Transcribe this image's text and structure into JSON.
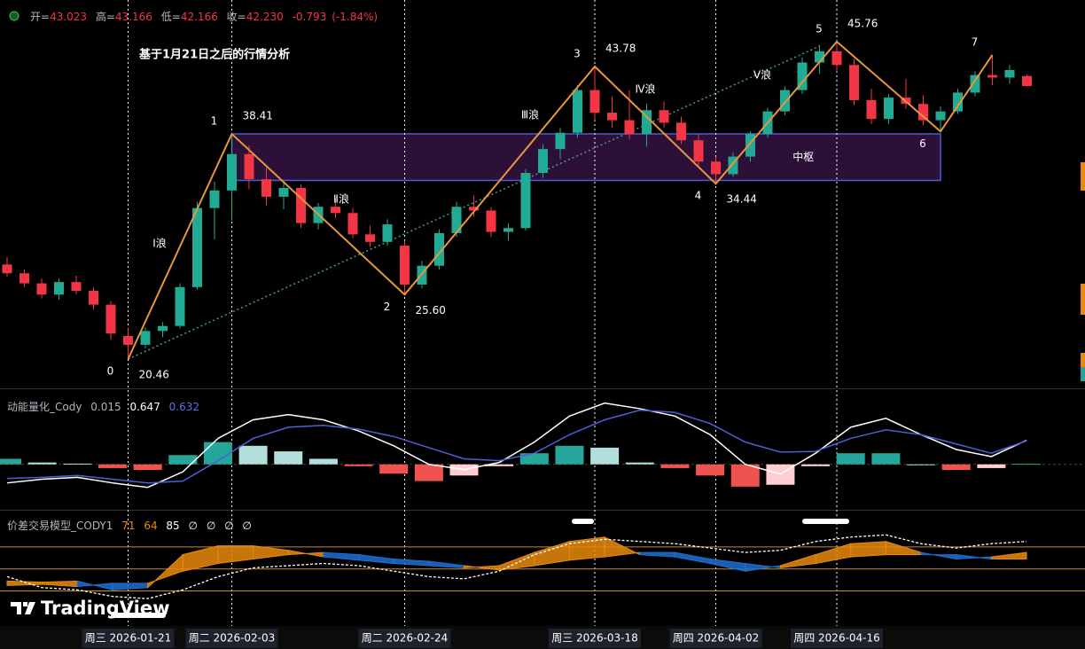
{
  "header": {
    "open_label": "开=",
    "high_label": "高=",
    "low_label": "低=",
    "close_label": "收=",
    "close_text": "42.230",
    "change": -0.793,
    "change_pct": {
      "value": -1.84,
      "label": "(-1.84%)"
    }
  },
  "watermark": "TradingView",
  "chart_data": [
    {
      "type": "candlestick",
      "title": "基于1月21日之后的行情分析",
      "categories": [
        null,
        null,
        null,
        null,
        null,
        null,
        null,
        "周三 2026-01-21",
        null,
        null,
        null,
        null,
        null,
        "周二 2026-02-03",
        null,
        null,
        null,
        null,
        null,
        null,
        null,
        null,
        null,
        "周二 2026-02-24",
        null,
        null,
        null,
        null,
        null,
        null,
        null,
        null,
        null,
        null,
        "周三 2026-03-18",
        null,
        null,
        null,
        null,
        null,
        null,
        "周四 2026-04-02",
        null,
        null,
        null,
        null,
        null,
        null,
        "周四 2026-04-16",
        null,
        null,
        null,
        null,
        null,
        null,
        null,
        null,
        null,
        null,
        null
      ],
      "open": [
        28.0,
        27.3,
        26.5,
        25.6,
        26.6,
        25.9,
        24.8,
        22.3,
        21.6,
        22.7,
        23.1,
        26.2,
        32.5,
        33.9,
        36.8,
        34.8,
        33.4,
        34.1,
        31.3,
        32.6,
        32.1,
        30.4,
        29.8,
        29.5,
        26.4,
        27.9,
        30.5,
        32.6,
        32.3,
        30.6,
        30.9,
        35.3,
        37.2,
        38.5,
        41.9,
        40.1,
        39.5,
        38.4,
        40.3,
        39.3,
        37.9,
        36.2,
        35.2,
        36.6,
        38.4,
        40.2,
        41.9,
        44.1,
        45.0,
        43.9,
        41.1,
        39.6,
        41.3,
        40.8,
        39.5,
        40.2,
        41.7,
        43.1,
        42.9,
        43.023
      ],
      "high": [
        28.6,
        27.6,
        26.9,
        26.9,
        27.1,
        26.2,
        25.1,
        22.9,
        23.0,
        23.4,
        26.5,
        33.0,
        34.6,
        38.41,
        37.5,
        35.7,
        34.6,
        34.4,
        32.9,
        33.3,
        32.5,
        31.1,
        31.6,
        29.9,
        28.3,
        30.8,
        33.0,
        33.5,
        32.6,
        31.3,
        35.6,
        37.6,
        38.9,
        42.3,
        43.78,
        41.4,
        41.9,
        40.8,
        41.0,
        39.8,
        38.4,
        36.6,
        36.9,
        38.6,
        40.5,
        42.2,
        44.5,
        45.5,
        45.76,
        44.4,
        42.0,
        41.6,
        42.8,
        41.5,
        40.6,
        42.0,
        43.4,
        44.7,
        43.9,
        43.166
      ],
      "low": [
        27.0,
        26.2,
        25.3,
        25.2,
        25.6,
        24.4,
        22.0,
        20.46,
        21.3,
        22.2,
        22.9,
        26.0,
        30.0,
        31.5,
        34.0,
        32.7,
        32.4,
        30.9,
        30.8,
        31.7,
        30.1,
        29.4,
        29.5,
        25.6,
        26.1,
        27.6,
        30.2,
        31.8,
        30.2,
        29.9,
        30.7,
        34.9,
        36.4,
        38.1,
        39.5,
        38.9,
        38.0,
        37.4,
        38.9,
        37.6,
        35.8,
        34.44,
        35.0,
        36.2,
        38.1,
        39.9,
        41.6,
        43.2,
        43.4,
        40.7,
        39.2,
        39.2,
        40.4,
        39.1,
        38.6,
        40.0,
        41.4,
        42.3,
        42.4,
        42.166
      ],
      "close": [
        27.3,
        26.5,
        25.6,
        26.6,
        25.9,
        24.8,
        22.5,
        21.6,
        22.7,
        23.1,
        26.2,
        32.5,
        33.9,
        36.8,
        34.8,
        33.4,
        34.1,
        31.3,
        32.6,
        32.1,
        30.4,
        29.8,
        31.2,
        26.4,
        27.9,
        30.5,
        32.6,
        32.3,
        30.6,
        30.9,
        35.3,
        37.2,
        38.5,
        41.9,
        40.1,
        39.5,
        38.4,
        40.3,
        39.3,
        37.9,
        36.2,
        35.2,
        36.6,
        38.4,
        40.2,
        41.9,
        44.1,
        45.0,
        43.9,
        41.1,
        39.6,
        41.3,
        40.8,
        39.5,
        40.2,
        41.7,
        43.1,
        42.9,
        43.5,
        42.23
      ],
      "ylim": [
        18.13,
        49.08
      ],
      "up_color": "#22ab94",
      "down_color": "#f23645",
      "waves": {
        "color": "#e8963c",
        "points": [
          {
            "label": "0",
            "x": 7,
            "value": 20.46
          },
          {
            "label": "1",
            "x": 13,
            "value": 38.41
          },
          {
            "label": "2",
            "x": 23,
            "value": 25.6,
            "value_label": "25.60"
          },
          {
            "label": "3",
            "x": 34,
            "value": 43.78
          },
          {
            "label": "4",
            "x": 41,
            "value": 34.44
          },
          {
            "label": "5",
            "x": 48,
            "value": 45.76
          },
          {
            "label": "6",
            "x": 54,
            "value": 38.6
          },
          {
            "label": "7",
            "x": 57,
            "value": 44.7
          }
        ]
      },
      "wave_names": [
        "Ⅰ浪",
        "Ⅱ浪",
        "Ⅲ浪",
        "Ⅳ浪",
        "Ⅴ浪"
      ],
      "zone": {
        "label": "中枢",
        "from": 13,
        "to": 54,
        "top": 38.41,
        "bottom": 34.7,
        "color": "#4f5bd5"
      },
      "trendline": {
        "from": [
          7,
          20.46
        ],
        "to": [
          47,
          45.4
        ],
        "color": "#4a9a8a"
      }
    },
    {
      "type": "macd",
      "title": "动能量化_Cody",
      "ylim": [
        -1.2,
        2.0
      ],
      "histogram": [
        0.15,
        0.05,
        0.02,
        -0.1,
        -0.15,
        0.25,
        0.6,
        0.5,
        0.35,
        0.15,
        -0.05,
        -0.25,
        -0.45,
        -0.3,
        -0.05,
        0.3,
        0.5,
        0.45,
        0.05,
        -0.1,
        -0.3,
        -0.6,
        -0.55,
        -0.05,
        0.3,
        0.3,
        0.0,
        -0.15,
        -0.1,
        0.015
      ],
      "series": [
        {
          "color": "#ffffff",
          "values": [
            -0.5,
            -0.4,
            -0.35,
            -0.5,
            -0.62,
            -0.2,
            0.7,
            1.2,
            1.34,
            1.2,
            0.9,
            0.5,
            0.0,
            -0.14,
            0.05,
            0.6,
            1.3,
            1.65,
            1.5,
            1.3,
            0.8,
            0.0,
            -0.26,
            0.3,
            1.0,
            1.24,
            0.8,
            0.4,
            0.21,
            0.647
          ]
        },
        {
          "color": "#4c5fd7",
          "values": [
            -0.38,
            -0.35,
            -0.3,
            -0.4,
            -0.5,
            -0.45,
            0.1,
            0.7,
            1.0,
            1.05,
            0.95,
            0.75,
            0.45,
            0.15,
            0.1,
            0.3,
            0.8,
            1.2,
            1.46,
            1.4,
            1.1,
            0.6,
            0.33,
            0.35,
            0.7,
            0.93,
            0.8,
            0.55,
            0.3,
            0.632
          ]
        }
      ]
    },
    {
      "type": "band",
      "title": "价差交易模型_CODY1",
      "readout": [
        71,
        64,
        85
      ],
      "readout_symbols": [
        "∅",
        "∅",
        "∅",
        "∅"
      ],
      "ylim": [
        0,
        100
      ],
      "levels": [
        67,
        47,
        27
      ],
      "level_color": "#c98a2e",
      "up_color": "#e8890c",
      "down_color": "#1e6fd0",
      "fast": [
        36,
        35,
        36,
        28,
        30,
        60,
        68,
        68,
        64,
        58,
        55,
        52,
        50,
        48,
        50,
        62,
        72,
        76,
        60,
        58,
        52,
        45,
        50,
        60,
        70,
        72,
        62,
        56,
        58,
        62
      ],
      "slow": [
        32,
        33,
        31,
        34,
        34,
        45,
        52,
        56,
        60,
        62,
        60,
        56,
        54,
        50,
        46,
        50,
        55,
        58,
        62,
        62,
        56,
        52,
        48,
        52,
        58,
        60,
        60,
        60,
        56,
        56
      ],
      "dashed": {
        "color": "#ffffff",
        "values": [
          40,
          30,
          28,
          22,
          20,
          28,
          40,
          48,
          50,
          52,
          50,
          45,
          40,
          38,
          45,
          60,
          70,
          74,
          72,
          70,
          66,
          62,
          64,
          72,
          76,
          78,
          70,
          66,
          70,
          72
        ]
      }
    }
  ]
}
